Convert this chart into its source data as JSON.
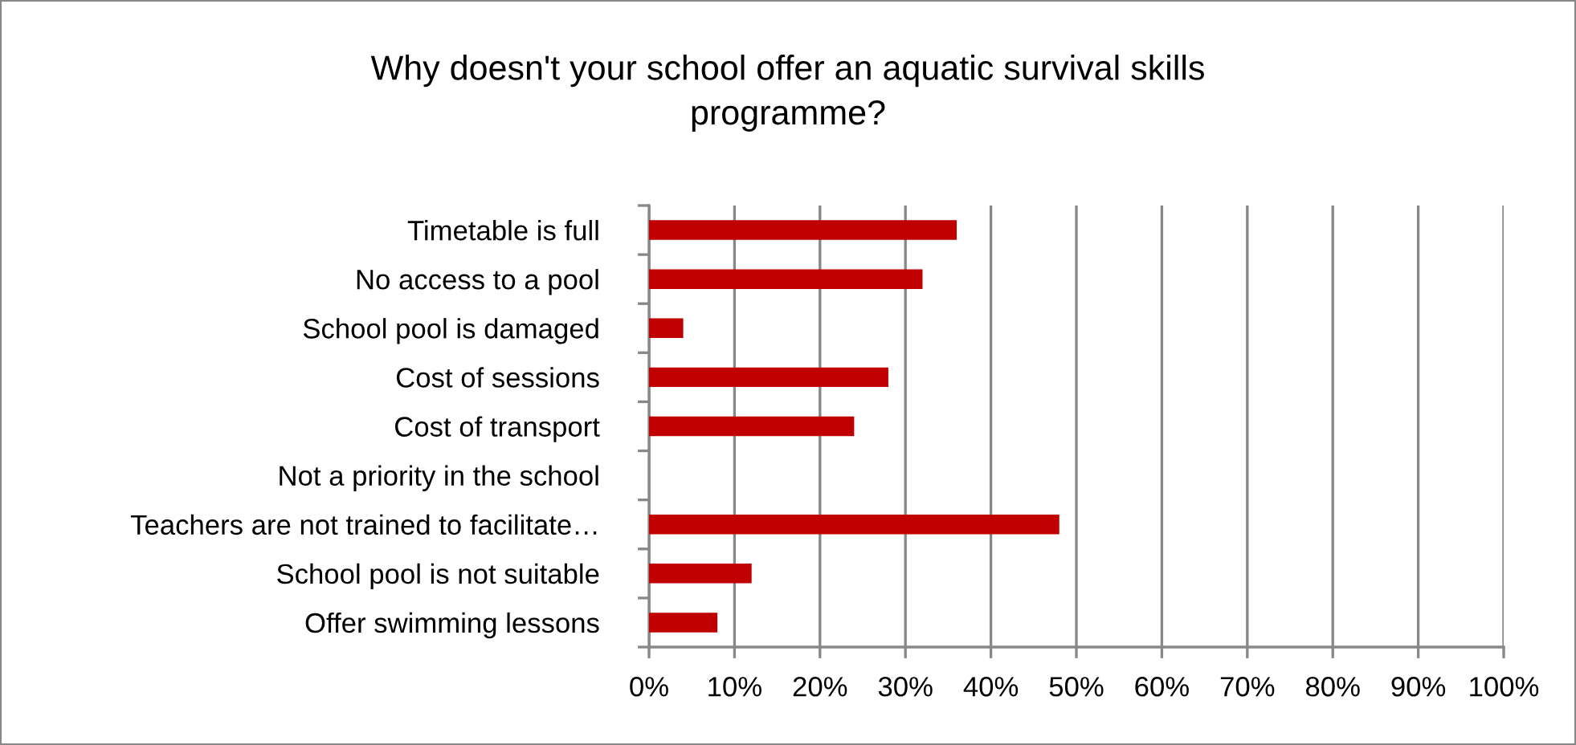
{
  "chart_data": {
    "type": "bar",
    "orientation": "horizontal",
    "title": "Why doesn't your school offer an aquatic survival skills\nprogramme?",
    "categories": [
      "Timetable is full",
      "No access to a pool",
      "School pool is damaged",
      "Cost of sessions",
      "Cost of transport",
      "Not a priority in the school",
      "Teachers are not trained to facilitate…",
      "School pool is not suitable",
      "Offer swimming lessons"
    ],
    "values": [
      36,
      32,
      4,
      28,
      24,
      0,
      48,
      12,
      8
    ],
    "color": "#c00000",
    "xlim": [
      0,
      100
    ],
    "xticks": [
      {
        "value": 0,
        "label": "0%"
      },
      {
        "value": 10,
        "label": "10%"
      },
      {
        "value": 20,
        "label": "20%"
      },
      {
        "value": 30,
        "label": "30%"
      },
      {
        "value": 40,
        "label": "40%"
      },
      {
        "value": 50,
        "label": "50%"
      },
      {
        "value": 60,
        "label": "60%"
      },
      {
        "value": 70,
        "label": "70%"
      },
      {
        "value": 80,
        "label": "80%"
      },
      {
        "value": 90,
        "label": "90%"
      },
      {
        "value": 100,
        "label": "100%"
      }
    ],
    "grid": "x"
  }
}
